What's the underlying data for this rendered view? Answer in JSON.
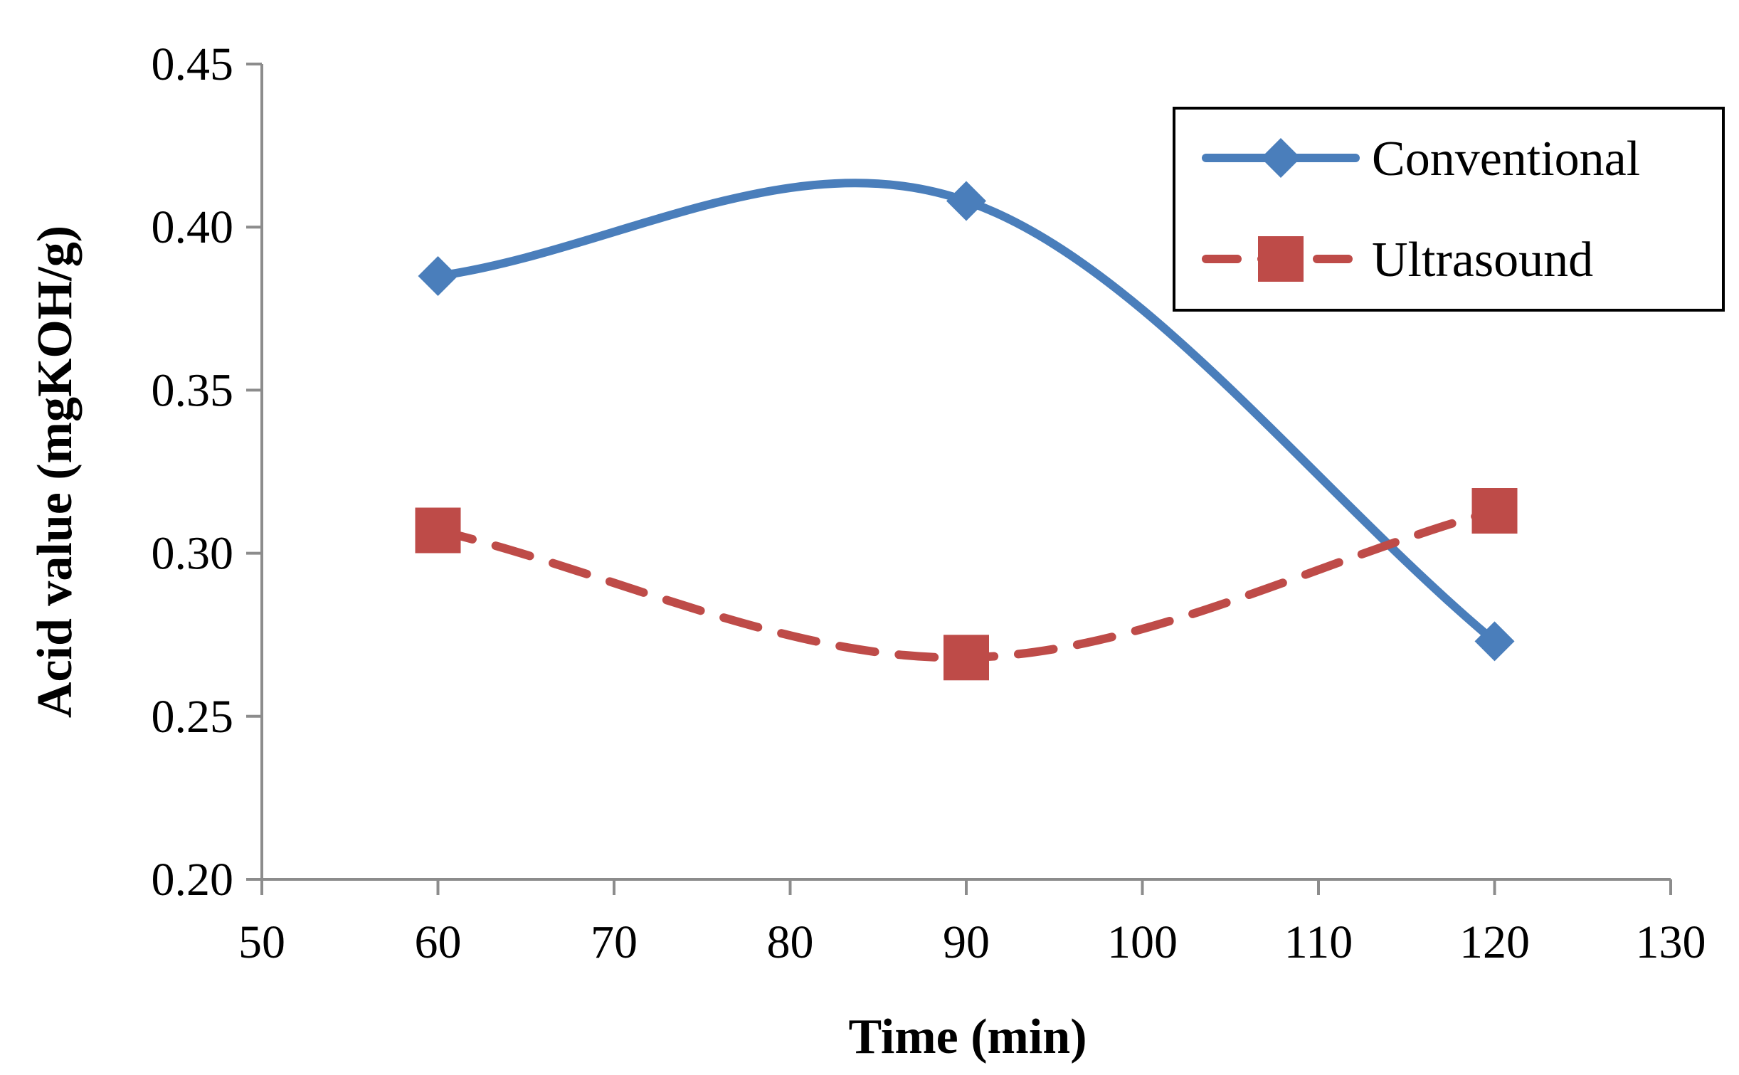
{
  "chart_data": {
    "type": "line",
    "title": "",
    "xlabel": "Time (min)",
    "ylabel": "Acid value (mgKOH/g)",
    "xlim": [
      50,
      130
    ],
    "ylim": [
      0.2,
      0.45
    ],
    "xticks": [
      50,
      60,
      70,
      80,
      90,
      100,
      110,
      120,
      130
    ],
    "xtick_labels": [
      "50",
      "60",
      "70",
      "80",
      "90",
      "100",
      "110",
      "120",
      "130"
    ],
    "yticks": [
      0.2,
      0.25,
      0.3,
      0.35,
      0.4,
      0.45
    ],
    "ytick_labels": [
      "0.20",
      "0.25",
      "0.30",
      "0.35",
      "0.40",
      "0.45"
    ],
    "grid": false,
    "legend_position": "top-right",
    "x": [
      60,
      90,
      120
    ],
    "series": [
      {
        "name": "Conventional",
        "values": [
          0.385,
          0.408,
          0.273
        ],
        "color": "#4a7ebb",
        "marker": "diamond",
        "line_style": "solid",
        "smooth": true
      },
      {
        "name": "Ultrasound",
        "values": [
          0.307,
          0.268,
          0.313
        ],
        "color": "#be4b48",
        "marker": "square",
        "line_style": "dashed",
        "smooth": true
      }
    ]
  },
  "colors": {
    "axis": "#8c8c8c",
    "legend_border": "#000000"
  }
}
